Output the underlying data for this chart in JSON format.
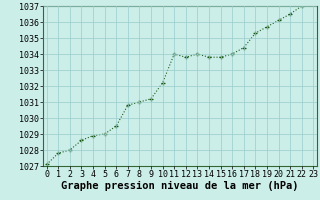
{
  "x": [
    0,
    1,
    2,
    3,
    4,
    5,
    6,
    7,
    8,
    9,
    10,
    11,
    12,
    13,
    14,
    15,
    16,
    17,
    18,
    19,
    20,
    21,
    22,
    23
  ],
  "y": [
    1027.1,
    1027.8,
    1028.0,
    1028.6,
    1028.9,
    1029.0,
    1029.5,
    1030.8,
    1031.0,
    1031.2,
    1032.2,
    1034.0,
    1033.8,
    1034.0,
    1033.8,
    1033.8,
    1034.0,
    1034.4,
    1035.3,
    1035.7,
    1036.1,
    1036.5,
    1037.0,
    1037.1
  ],
  "ylim_min": 1027,
  "ylim_max": 1037,
  "yticks": [
    1027,
    1028,
    1029,
    1030,
    1031,
    1032,
    1033,
    1034,
    1035,
    1036,
    1037
  ],
  "xticks": [
    0,
    1,
    2,
    3,
    4,
    5,
    6,
    7,
    8,
    9,
    10,
    11,
    12,
    13,
    14,
    15,
    16,
    17,
    18,
    19,
    20,
    21,
    22,
    23
  ],
  "xlabel": "Graphe pression niveau de la mer (hPa)",
  "line_color": "#1a5c1a",
  "marker_color": "#1a5c1a",
  "bg_color": "#cceee8",
  "grid_color": "#99cccc",
  "tick_fontsize": 6,
  "xlabel_fontsize": 7.5,
  "xlim_min": 0,
  "xlim_max": 23
}
